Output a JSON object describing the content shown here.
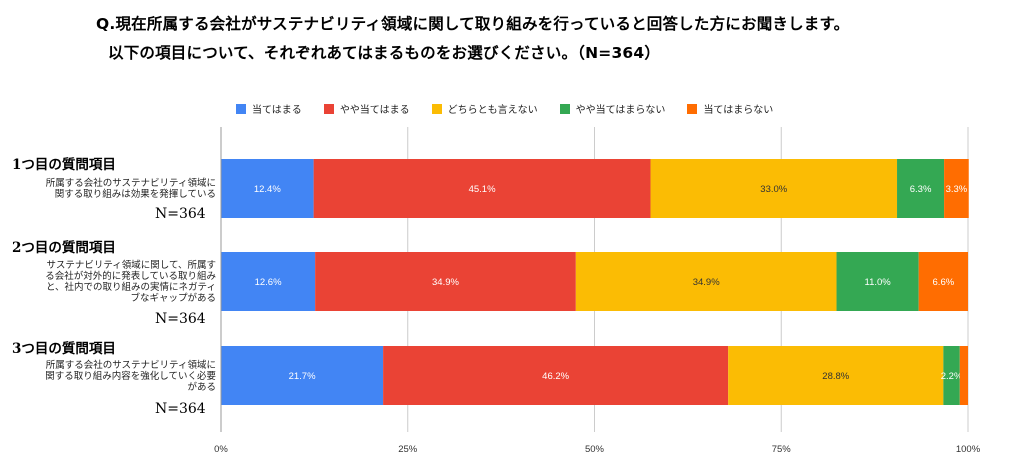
{
  "header": {
    "line1": "Q.現在所属する会社がサステナビリティ領域に関して取り組みを行っていると回答した方にお聞きします。",
    "line2": "以下の項目について、それぞれあてはまるものをお選びください。（N=364）"
  },
  "chart_data": {
    "type": "bar",
    "orientation": "horizontal-stacked-100",
    "legend_position": "top",
    "series_names": [
      "当てはまる",
      "やや当てはまる",
      "どちらとも言えない",
      "やや当てはまらない",
      "当てはまらない"
    ],
    "series_colors": [
      "#4285f4",
      "#ea4335",
      "#fbbc04",
      "#34a853",
      "#ff6d01"
    ],
    "categories": [
      {
        "heading": "1つ目の質問項目",
        "description": [
          "所属する会社のサステナビリティ領域に",
          "関する取り組みは効果を発揮している"
        ],
        "n_label": "N=364",
        "values": [
          12.4,
          45.1,
          33.0,
          6.3,
          3.3
        ],
        "labels": [
          "12.4%",
          "45.1%",
          "33.0%",
          "6.3%",
          "3.3%"
        ]
      },
      {
        "heading": "2つ目の質問項目",
        "description": [
          "サステナビリティ領域に関して、所属す",
          "る会社が対外的に発表している取り組み",
          "と、社内での取り組みの実情にネガティ",
          "ブなギャップがある"
        ],
        "n_label": "N=364",
        "values": [
          12.6,
          34.9,
          34.9,
          11.0,
          6.6
        ],
        "labels": [
          "12.6%",
          "34.9%",
          "34.9%",
          "11.0%",
          "6.6%"
        ]
      },
      {
        "heading": "3つ目の質問項目",
        "description": [
          "所属する会社のサステナビリティ領域に",
          "関する取り組み内容を強化していく必要",
          "がある"
        ],
        "n_label": "N=364",
        "values": [
          21.7,
          46.2,
          28.8,
          2.2,
          1.1
        ],
        "labels": [
          "21.7%",
          "46.2%",
          "28.8%",
          "2.2%",
          ""
        ]
      }
    ],
    "x_range": [
      0,
      100
    ],
    "x_ticks": [
      0,
      25,
      50,
      75,
      100
    ],
    "x_tick_labels": [
      "0%",
      "25%",
      "50%",
      "75%",
      "100%"
    ],
    "grid": true
  }
}
